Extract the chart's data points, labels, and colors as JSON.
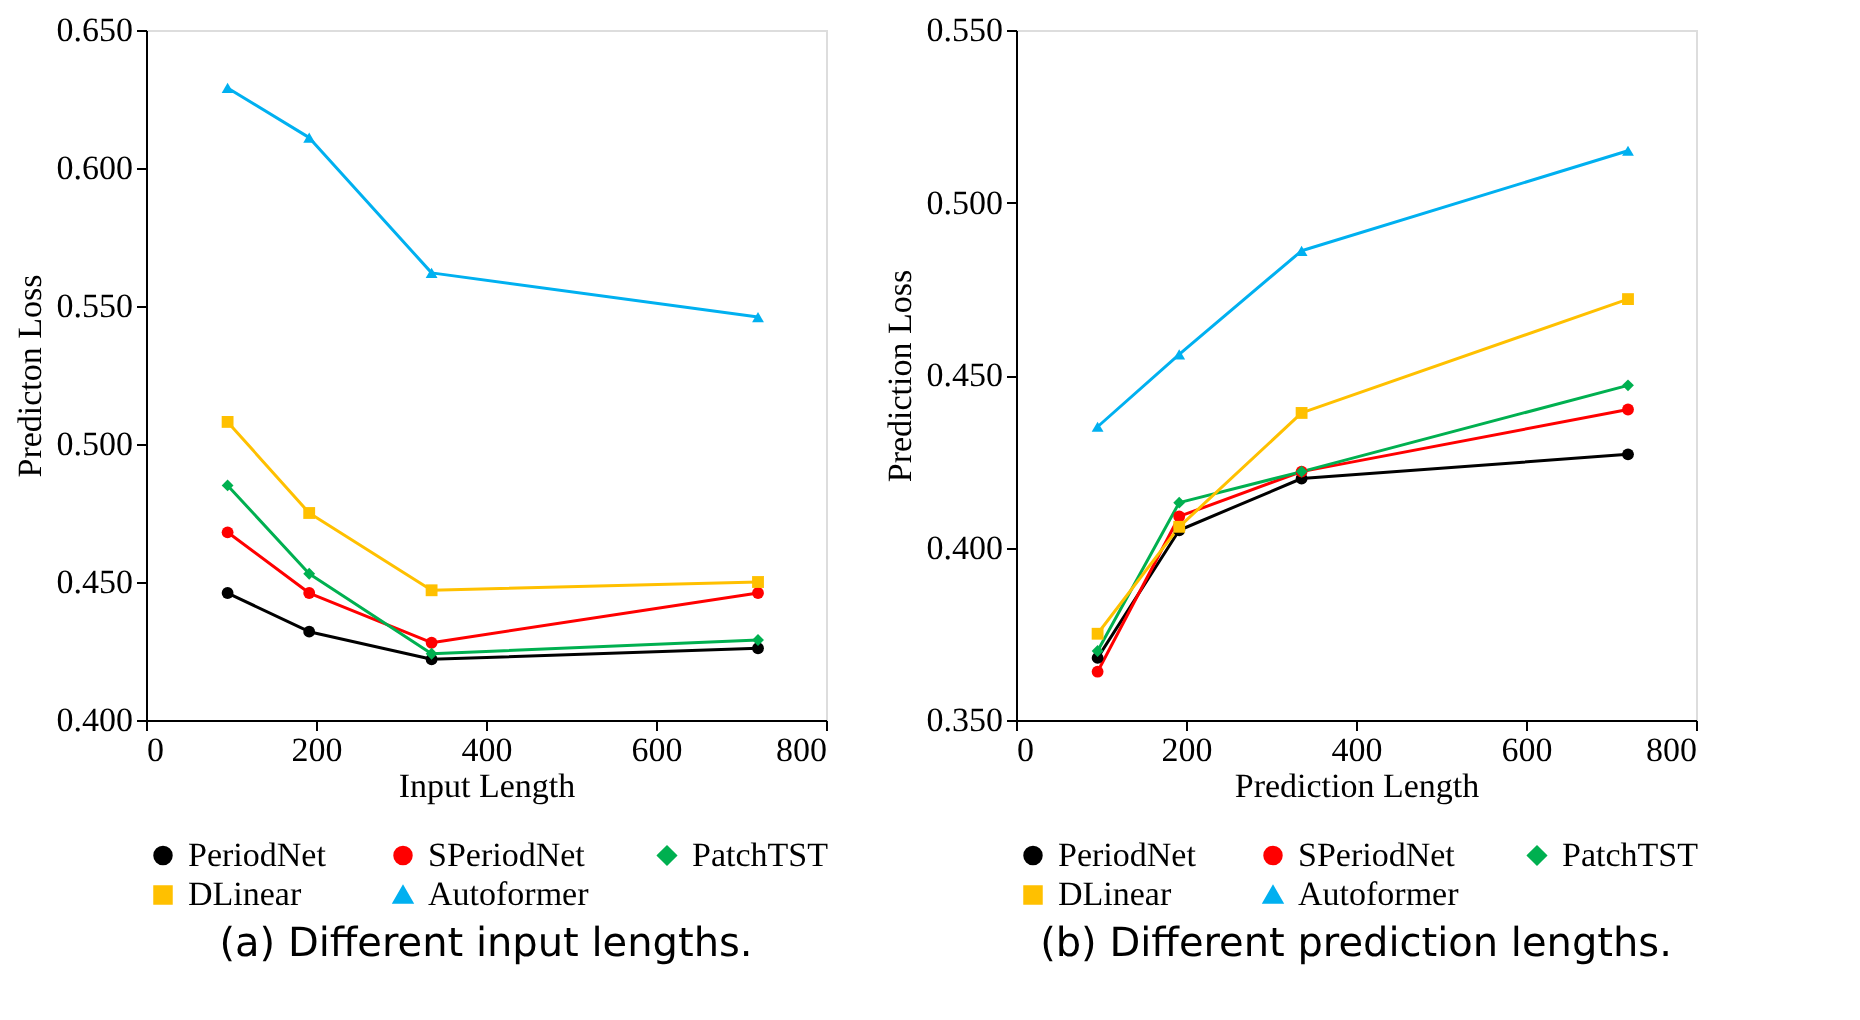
{
  "chart_data": [
    {
      "type": "line",
      "title": "(a) Different input lengths.",
      "xlabel": "Input Length",
      "ylabel": "Predicton Loss",
      "x": [
        96,
        192,
        336,
        720
      ],
      "xlim": [
        0,
        800
      ],
      "xticks": [
        0,
        200,
        400,
        600,
        800
      ],
      "ylim": [
        0.4,
        0.65
      ],
      "yticks": [
        {
          "value": 0.4,
          "label": "0.400"
        },
        {
          "value": 0.45,
          "label": "0.450"
        },
        {
          "value": 0.5,
          "label": "0.500"
        },
        {
          "value": 0.55,
          "label": "0.550"
        },
        {
          "value": 0.6,
          "label": "0.600"
        },
        {
          "value": 0.65,
          "label": "0.650"
        }
      ],
      "grid": false,
      "legend": "bottom",
      "series": [
        {
          "name": "PeriodNet",
          "color": "#000000",
          "marker": "circle",
          "values": [
            0.446,
            0.432,
            0.422,
            0.426
          ]
        },
        {
          "name": "SPeriodNet",
          "color": "#ff0000",
          "marker": "circle",
          "values": [
            0.468,
            0.446,
            0.428,
            0.446
          ]
        },
        {
          "name": "PatchTST",
          "color": "#00b050",
          "marker": "diamond",
          "values": [
            0.485,
            0.453,
            0.424,
            0.429
          ]
        },
        {
          "name": "DLinear",
          "color": "#ffc000",
          "marker": "square",
          "values": [
            0.508,
            0.475,
            0.447,
            0.45
          ]
        },
        {
          "name": "Autoformer",
          "color": "#00b0f0",
          "marker": "triangle",
          "values": [
            0.629,
            0.611,
            0.562,
            0.546
          ]
        }
      ]
    },
    {
      "type": "line",
      "title": "(b) Different prediction lengths.",
      "xlabel": "Prediction Length",
      "ylabel": "Prediction Loss",
      "x": [
        96,
        192,
        336,
        720
      ],
      "xlim": [
        0,
        800
      ],
      "xticks": [
        0,
        200,
        400,
        600,
        800
      ],
      "ylim": [
        0.35,
        0.55
      ],
      "yticks": [
        {
          "value": 0.35,
          "label": "0.350"
        },
        {
          "value": 0.4,
          "label": "0.400"
        },
        {
          "value": 0.45,
          "label": "0.450"
        },
        {
          "value": 0.5,
          "label": "0.500"
        },
        {
          "value": 0.55,
          "label": "0.550"
        }
      ],
      "grid": false,
      "legend": "bottom",
      "series": [
        {
          "name": "PeriodNet",
          "color": "#000000",
          "marker": "circle",
          "values": [
            0.368,
            0.405,
            0.42,
            0.427
          ]
        },
        {
          "name": "SPeriodNet",
          "color": "#ff0000",
          "marker": "circle",
          "values": [
            0.364,
            0.409,
            0.422,
            0.44
          ]
        },
        {
          "name": "PatchTST",
          "color": "#00b050",
          "marker": "diamond",
          "values": [
            0.37,
            0.413,
            0.422,
            0.447
          ]
        },
        {
          "name": "DLinear",
          "color": "#ffc000",
          "marker": "square",
          "values": [
            0.375,
            0.406,
            0.439,
            0.472
          ]
        },
        {
          "name": "Autoformer",
          "color": "#00b0f0",
          "marker": "triangle",
          "values": [
            0.435,
            0.456,
            0.486,
            0.515
          ]
        }
      ]
    }
  ]
}
